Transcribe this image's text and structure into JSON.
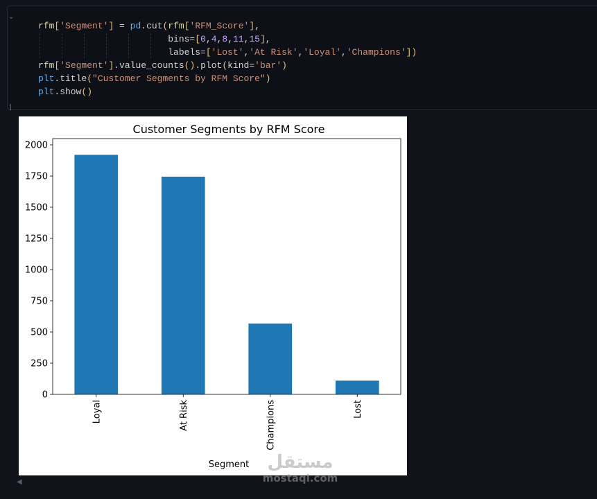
{
  "code": {
    "lines": [
      "rfm['Segment'] = pd.cut(rfm['RFM_Score'],",
      "                        bins=[0,4,8,11,15],",
      "                        labels=['Lost','At Risk','Loyal','Champions'])",
      "rfm['Segment'].value_counts().plot(kind='bar')",
      "plt.title(\"Customer Segments by RFM Score\")",
      "plt.show()"
    ]
  },
  "chart_data": {
    "type": "bar",
    "title": "Customer Segments by RFM Score",
    "xlabel": "Segment",
    "ylabel": "",
    "categories": [
      "Loyal",
      "At Risk",
      "Champions",
      "Lost"
    ],
    "values": [
      1920,
      1745,
      568,
      110
    ],
    "ylim": [
      0,
      2050
    ],
    "yticks": [
      0,
      250,
      500,
      750,
      1000,
      1250,
      1500,
      1750,
      2000
    ],
    "bar_color": "#1f77b4",
    "grid": false
  },
  "watermark": {
    "arabic": "مستقل",
    "latin": "mostaql.com"
  }
}
